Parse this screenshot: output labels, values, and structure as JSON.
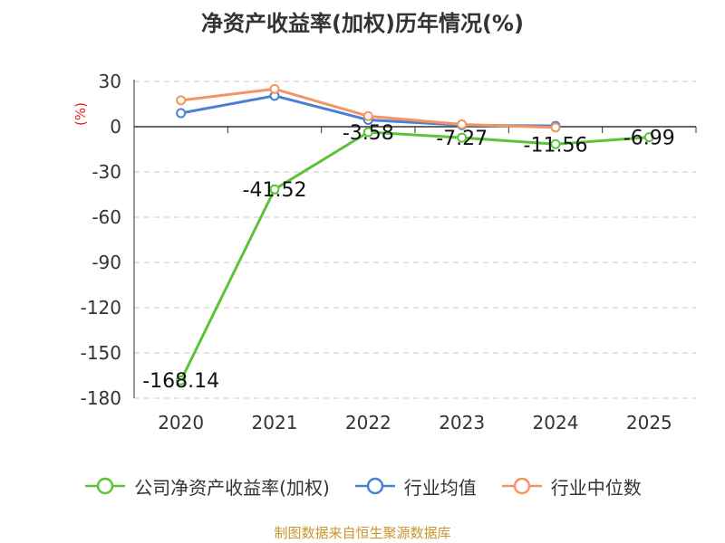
{
  "chart_data": {
    "type": "line",
    "title": "净资产收益率(加权)历年情况(%)",
    "ylabel": "(%)",
    "xlabel": "",
    "categories": [
      "2020",
      "2021",
      "2022",
      "2023",
      "2024",
      "2025"
    ],
    "ylim": [
      -180,
      30
    ],
    "yticks": [
      30,
      0,
      -30,
      -60,
      -90,
      -120,
      -150,
      -180
    ],
    "grid": true,
    "legend_position": "bottom",
    "series": [
      {
        "name": "公司净资产收益率(加权)",
        "color": "#5ac436",
        "values": [
          -168.14,
          -41.52,
          -3.58,
          -7.27,
          -11.56,
          -6.99
        ],
        "labels": [
          "-168.14",
          "-41.52",
          "-3.58",
          "-7.27",
          "-11.56",
          "-6.99"
        ]
      },
      {
        "name": "行业均值",
        "color": "#4a7fd6",
        "values": [
          9,
          20.5,
          4.5,
          1,
          0.5,
          null
        ]
      },
      {
        "name": "行业中位数",
        "color": "#f59461",
        "values": [
          17.5,
          25,
          7,
          1.5,
          -0.5,
          null
        ]
      }
    ]
  },
  "source": "制图数据来自恒生聚源数据库"
}
